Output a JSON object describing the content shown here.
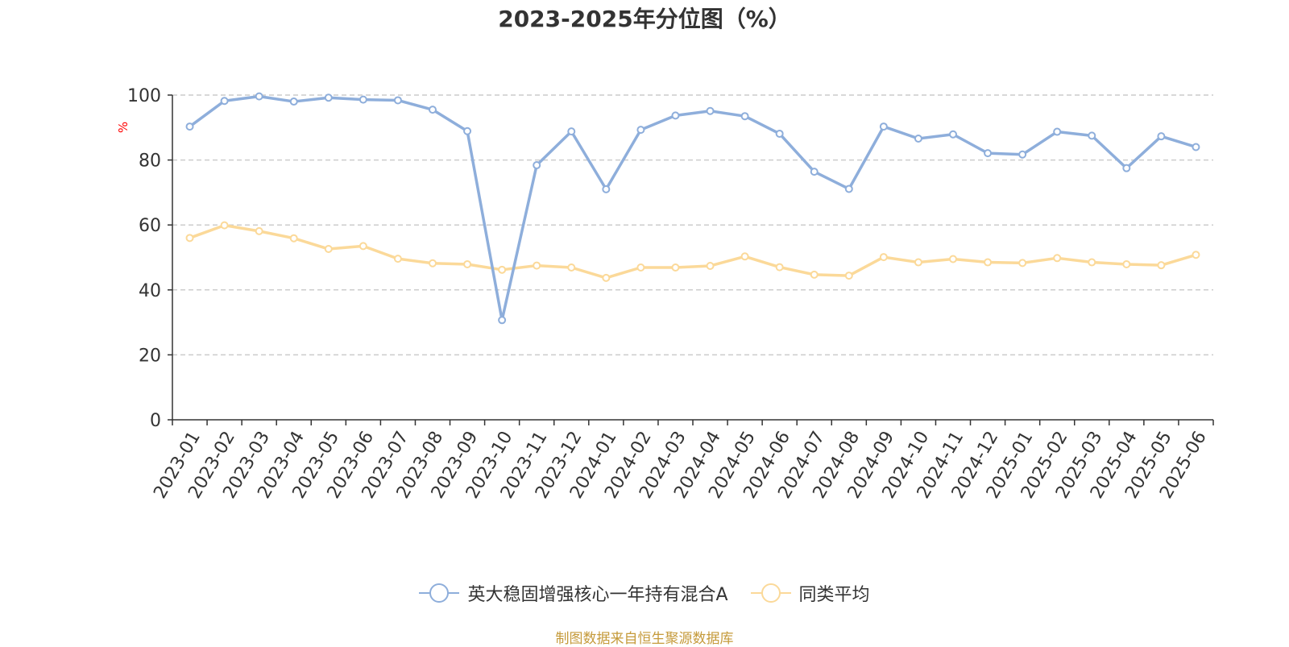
{
  "chart_data": {
    "type": "line",
    "title": "2023-2025年分位图（%）",
    "ylabel": "%",
    "xlabel": "",
    "ylim": [
      0,
      100
    ],
    "yticks": [
      0,
      20,
      40,
      60,
      80,
      100
    ],
    "grid": "horizontal dashed",
    "legend_position": "bottom",
    "categories": [
      "2023-01",
      "2023-02",
      "2023-03",
      "2023-04",
      "2023-05",
      "2023-06",
      "2023-07",
      "2023-08",
      "2023-09",
      "2023-10",
      "2023-11",
      "2023-12",
      "2024-01",
      "2024-02",
      "2024-03",
      "2024-04",
      "2024-05",
      "2024-06",
      "2024-07",
      "2024-08",
      "2024-09",
      "2024-10",
      "2024-11",
      "2024-12",
      "2025-01",
      "2025-02",
      "2025-03",
      "2025-04",
      "2025-05",
      "2025-06"
    ],
    "series": [
      {
        "name": "英大稳固增强核心一年持有混合A",
        "color": "#8eaedb",
        "values": [
          90.3,
          98.2,
          99.6,
          98.0,
          99.2,
          98.6,
          98.4,
          95.5,
          88.9,
          30.7,
          78.4,
          88.8,
          71.0,
          89.3,
          93.7,
          95.1,
          93.5,
          88.1,
          76.4,
          71.1,
          90.3,
          86.6,
          87.9,
          82.1,
          81.7,
          88.7,
          87.5,
          77.5,
          87.3,
          84.0
        ]
      },
      {
        "name": "同类平均",
        "color": "#fbd999",
        "values": [
          56.0,
          59.9,
          58.1,
          55.9,
          52.6,
          53.5,
          49.6,
          48.2,
          47.9,
          46.2,
          47.5,
          46.9,
          43.7,
          46.9,
          46.9,
          47.4,
          50.3,
          47.0,
          44.7,
          44.4,
          50.1,
          48.5,
          49.5,
          48.5,
          48.3,
          49.8,
          48.5,
          47.9,
          47.6,
          50.8
        ]
      }
    ]
  },
  "source_text": "制图数据来自恒生聚源数据库",
  "colors": {
    "axis": "#333333",
    "grid": "#cccccc",
    "ylabel": "#ff0000",
    "source": "#c59a3a"
  }
}
